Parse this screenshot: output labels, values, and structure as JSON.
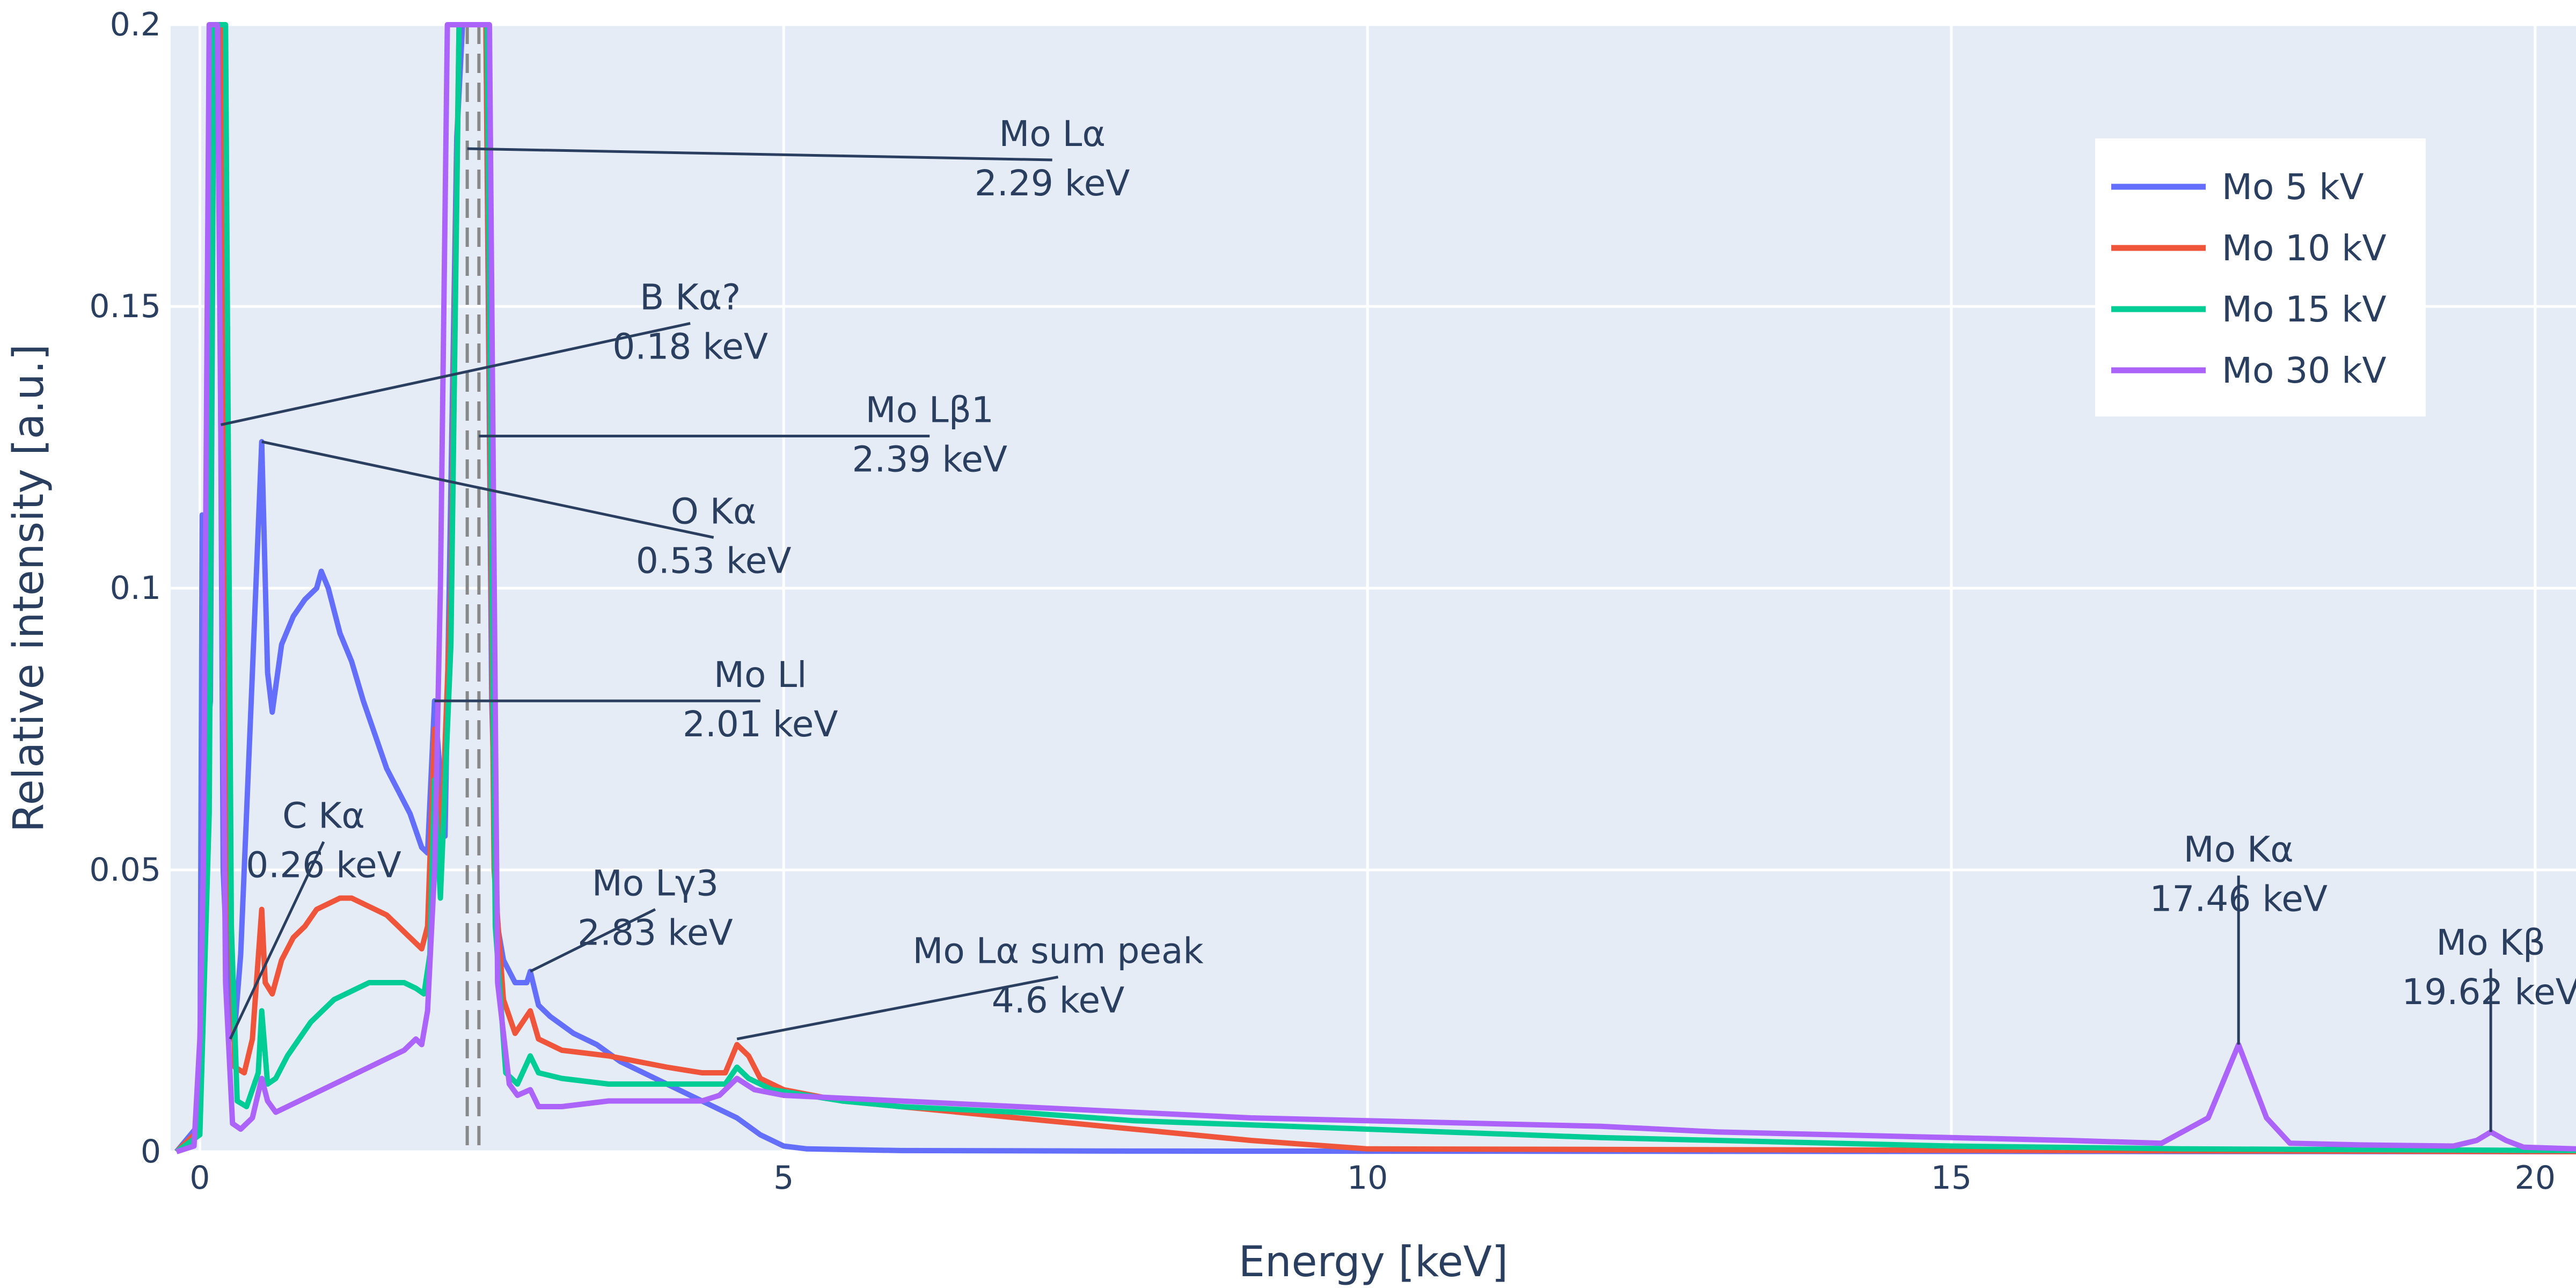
{
  "chart_data": {
    "type": "line",
    "title": "",
    "xlabel": "Energy [keV]",
    "ylabel": "Relative intensity [a.u.]",
    "xlim": [
      -0.25,
      20.35
    ],
    "ylim": [
      0,
      0.2
    ],
    "x_ticks": [
      {
        "v": 0,
        "label": "0"
      },
      {
        "v": 5,
        "label": "5"
      },
      {
        "v": 10,
        "label": "10"
      },
      {
        "v": 15,
        "label": "15"
      },
      {
        "v": 20,
        "label": "20"
      }
    ],
    "y_ticks": [
      {
        "v": 0,
        "label": "0"
      },
      {
        "v": 0.05,
        "label": "0.05"
      },
      {
        "v": 0.1,
        "label": "0.1"
      },
      {
        "v": 0.15,
        "label": "0.15"
      },
      {
        "v": 0.2,
        "label": "0.2"
      }
    ],
    "grid": true,
    "legend_position": "top-right",
    "reference_lines": [
      2.29,
      2.39
    ],
    "series": [
      {
        "name": "Mo 5 kV",
        "color": "#636efa",
        "points": [
          [
            -0.2,
            0.0
          ],
          [
            0.0,
            0.005
          ],
          [
            0.02,
            0.113
          ],
          [
            0.05,
            0.07
          ],
          [
            0.09,
            0.08
          ],
          [
            0.12,
            0.2
          ],
          [
            0.16,
            0.2
          ],
          [
            0.2,
            0.05
          ],
          [
            0.26,
            0.02
          ],
          [
            0.3,
            0.022
          ],
          [
            0.35,
            0.035
          ],
          [
            0.45,
            0.085
          ],
          [
            0.53,
            0.126
          ],
          [
            0.58,
            0.085
          ],
          [
            0.62,
            0.078
          ],
          [
            0.7,
            0.09
          ],
          [
            0.8,
            0.095
          ],
          [
            0.9,
            0.098
          ],
          [
            1.0,
            0.1
          ],
          [
            1.04,
            0.103
          ],
          [
            1.1,
            0.1
          ],
          [
            1.2,
            0.092
          ],
          [
            1.3,
            0.087
          ],
          [
            1.4,
            0.08
          ],
          [
            1.5,
            0.074
          ],
          [
            1.6,
            0.068
          ],
          [
            1.7,
            0.064
          ],
          [
            1.8,
            0.06
          ],
          [
            1.9,
            0.054
          ],
          [
            1.95,
            0.053
          ],
          [
            2.01,
            0.08
          ],
          [
            2.1,
            0.056
          ],
          [
            2.2,
            0.18
          ],
          [
            2.25,
            0.2
          ],
          [
            2.45,
            0.2
          ],
          [
            2.5,
            0.08
          ],
          [
            2.55,
            0.04
          ],
          [
            2.6,
            0.034
          ],
          [
            2.7,
            0.03
          ],
          [
            2.8,
            0.03
          ],
          [
            2.83,
            0.032
          ],
          [
            2.9,
            0.026
          ],
          [
            3.0,
            0.024
          ],
          [
            3.2,
            0.021
          ],
          [
            3.4,
            0.019
          ],
          [
            3.6,
            0.016
          ],
          [
            3.8,
            0.014
          ],
          [
            4.0,
            0.012
          ],
          [
            4.2,
            0.01
          ],
          [
            4.4,
            0.008
          ],
          [
            4.6,
            0.006
          ],
          [
            4.8,
            0.003
          ],
          [
            5.0,
            0.001
          ],
          [
            5.2,
            0.0005
          ],
          [
            6.0,
            0.0002
          ],
          [
            8.0,
            0.0001
          ],
          [
            20.35,
            0.0
          ]
        ]
      },
      {
        "name": "Mo 10 kV",
        "color": "#ef553b",
        "points": [
          [
            -0.2,
            0.0
          ],
          [
            0.0,
            0.004
          ],
          [
            0.05,
            0.06
          ],
          [
            0.1,
            0.2
          ],
          [
            0.2,
            0.2
          ],
          [
            0.25,
            0.05
          ],
          [
            0.3,
            0.015
          ],
          [
            0.38,
            0.014
          ],
          [
            0.45,
            0.02
          ],
          [
            0.53,
            0.043
          ],
          [
            0.56,
            0.03
          ],
          [
            0.62,
            0.028
          ],
          [
            0.7,
            0.034
          ],
          [
            0.8,
            0.038
          ],
          [
            0.9,
            0.04
          ],
          [
            1.0,
            0.043
          ],
          [
            1.1,
            0.044
          ],
          [
            1.2,
            0.045
          ],
          [
            1.3,
            0.045
          ],
          [
            1.4,
            0.044
          ],
          [
            1.5,
            0.043
          ],
          [
            1.6,
            0.042
          ],
          [
            1.7,
            0.04
          ],
          [
            1.8,
            0.038
          ],
          [
            1.9,
            0.036
          ],
          [
            1.95,
            0.04
          ],
          [
            2.01,
            0.075
          ],
          [
            2.06,
            0.05
          ],
          [
            2.15,
            0.1
          ],
          [
            2.22,
            0.2
          ],
          [
            2.45,
            0.2
          ],
          [
            2.52,
            0.05
          ],
          [
            2.6,
            0.027
          ],
          [
            2.7,
            0.021
          ],
          [
            2.83,
            0.025
          ],
          [
            2.9,
            0.02
          ],
          [
            3.1,
            0.018
          ],
          [
            3.5,
            0.017
          ],
          [
            4.0,
            0.015
          ],
          [
            4.3,
            0.014
          ],
          [
            4.5,
            0.014
          ],
          [
            4.6,
            0.019
          ],
          [
            4.7,
            0.017
          ],
          [
            4.8,
            0.013
          ],
          [
            5.0,
            0.011
          ],
          [
            5.5,
            0.009
          ],
          [
            6.0,
            0.008
          ],
          [
            7.0,
            0.006
          ],
          [
            8.0,
            0.004
          ],
          [
            9.0,
            0.002
          ],
          [
            10.0,
            0.0005
          ],
          [
            20.35,
            0.0
          ]
        ]
      },
      {
        "name": "Mo 15 kV",
        "color": "#00cc96",
        "points": [
          [
            -0.2,
            0.0
          ],
          [
            0.0,
            0.003
          ],
          [
            0.08,
            0.06
          ],
          [
            0.12,
            0.2
          ],
          [
            0.22,
            0.2
          ],
          [
            0.27,
            0.04
          ],
          [
            0.32,
            0.009
          ],
          [
            0.4,
            0.008
          ],
          [
            0.5,
            0.014
          ],
          [
            0.53,
            0.025
          ],
          [
            0.58,
            0.012
          ],
          [
            0.65,
            0.013
          ],
          [
            0.75,
            0.017
          ],
          [
            0.85,
            0.02
          ],
          [
            0.95,
            0.023
          ],
          [
            1.05,
            0.025
          ],
          [
            1.15,
            0.027
          ],
          [
            1.25,
            0.028
          ],
          [
            1.35,
            0.029
          ],
          [
            1.45,
            0.03
          ],
          [
            1.55,
            0.03
          ],
          [
            1.65,
            0.03
          ],
          [
            1.75,
            0.03
          ],
          [
            1.85,
            0.029
          ],
          [
            1.92,
            0.028
          ],
          [
            1.97,
            0.035
          ],
          [
            2.01,
            0.066
          ],
          [
            2.06,
            0.045
          ],
          [
            2.15,
            0.09
          ],
          [
            2.22,
            0.2
          ],
          [
            2.46,
            0.2
          ],
          [
            2.53,
            0.04
          ],
          [
            2.62,
            0.014
          ],
          [
            2.72,
            0.012
          ],
          [
            2.83,
            0.017
          ],
          [
            2.9,
            0.014
          ],
          [
            3.1,
            0.013
          ],
          [
            3.5,
            0.012
          ],
          [
            4.0,
            0.012
          ],
          [
            4.3,
            0.012
          ],
          [
            4.5,
            0.012
          ],
          [
            4.6,
            0.015
          ],
          [
            4.7,
            0.013
          ],
          [
            4.9,
            0.011
          ],
          [
            5.5,
            0.009
          ],
          [
            6.0,
            0.008
          ],
          [
            7.0,
            0.007
          ],
          [
            8.0,
            0.0055
          ],
          [
            10.0,
            0.004
          ],
          [
            12.0,
            0.0025
          ],
          [
            14.0,
            0.0015
          ],
          [
            15.0,
            0.001
          ],
          [
            17.0,
            0.0005
          ],
          [
            20.35,
            0.0002
          ]
        ]
      },
      {
        "name": "Mo 30 kV",
        "color": "#ab63fa",
        "points": [
          [
            -0.2,
            0.0
          ],
          [
            -0.05,
            0.001
          ],
          [
            0.0,
            0.02
          ],
          [
            0.03,
            0.05
          ],
          [
            0.08,
            0.2
          ],
          [
            0.15,
            0.2
          ],
          [
            0.22,
            0.03
          ],
          [
            0.28,
            0.005
          ],
          [
            0.35,
            0.004
          ],
          [
            0.45,
            0.006
          ],
          [
            0.53,
            0.013
          ],
          [
            0.58,
            0.009
          ],
          [
            0.65,
            0.007
          ],
          [
            0.75,
            0.008
          ],
          [
            0.85,
            0.009
          ],
          [
            0.95,
            0.01
          ],
          [
            1.05,
            0.011
          ],
          [
            1.15,
            0.012
          ],
          [
            1.25,
            0.013
          ],
          [
            1.35,
            0.014
          ],
          [
            1.45,
            0.015
          ],
          [
            1.55,
            0.016
          ],
          [
            1.65,
            0.017
          ],
          [
            1.75,
            0.018
          ],
          [
            1.85,
            0.02
          ],
          [
            1.9,
            0.019
          ],
          [
            1.95,
            0.025
          ],
          [
            2.01,
            0.05
          ],
          [
            2.06,
            0.1
          ],
          [
            2.12,
            0.2
          ],
          [
            2.48,
            0.2
          ],
          [
            2.55,
            0.03
          ],
          [
            2.65,
            0.012
          ],
          [
            2.72,
            0.01
          ],
          [
            2.83,
            0.011
          ],
          [
            2.9,
            0.008
          ],
          [
            3.1,
            0.008
          ],
          [
            3.5,
            0.009
          ],
          [
            4.0,
            0.009
          ],
          [
            4.3,
            0.009
          ],
          [
            4.45,
            0.01
          ],
          [
            4.6,
            0.013
          ],
          [
            4.75,
            0.011
          ],
          [
            5.0,
            0.01
          ],
          [
            6.0,
            0.009
          ],
          [
            7.0,
            0.008
          ],
          [
            8.0,
            0.007
          ],
          [
            9.0,
            0.006
          ],
          [
            10.0,
            0.0055
          ],
          [
            11.0,
            0.005
          ],
          [
            12.0,
            0.0045
          ],
          [
            13.0,
            0.0035
          ],
          [
            14.0,
            0.003
          ],
          [
            15.0,
            0.0025
          ],
          [
            16.0,
            0.002
          ],
          [
            16.8,
            0.0015
          ],
          [
            17.2,
            0.006
          ],
          [
            17.46,
            0.019
          ],
          [
            17.7,
            0.006
          ],
          [
            17.9,
            0.0015
          ],
          [
            18.5,
            0.0012
          ],
          [
            19.3,
            0.001
          ],
          [
            19.5,
            0.002
          ],
          [
            19.62,
            0.0035
          ],
          [
            19.75,
            0.002
          ],
          [
            19.9,
            0.0008
          ],
          [
            20.35,
            0.0005
          ]
        ]
      }
    ],
    "annotations": [
      {
        "lines": [
          "Mo Lα",
          "2.29 keV"
        ],
        "point": [
          2.29,
          0.178
        ],
        "text_at": [
          7.3,
          0.176
        ]
      },
      {
        "lines": [
          "B Kα?",
          "0.18 keV"
        ],
        "point": [
          0.18,
          0.129
        ],
        "text_at": [
          4.2,
          0.147
        ]
      },
      {
        "lines": [
          "Mo Lβ1",
          "2.39 keV"
        ],
        "point": [
          2.39,
          0.127
        ],
        "text_at": [
          6.25,
          0.127
        ]
      },
      {
        "lines": [
          "O Kα",
          "0.53 keV"
        ],
        "point": [
          0.53,
          0.126
        ],
        "text_at": [
          4.4,
          0.109
        ]
      },
      {
        "lines": [
          "Mo Ll",
          "2.01 keV"
        ],
        "point": [
          2.01,
          0.08
        ],
        "text_at": [
          4.8,
          0.08
        ]
      },
      {
        "lines": [
          "C Kα",
          "0.26 keV"
        ],
        "point": [
          0.26,
          0.02
        ],
        "text_at": [
          1.06,
          0.055
        ]
      },
      {
        "lines": [
          "Mo Lγ3",
          "2.83 keV"
        ],
        "point": [
          2.83,
          0.032
        ],
        "text_at": [
          3.9,
          0.043
        ]
      },
      {
        "lines": [
          "Mo Lα sum peak",
          "4.6 keV"
        ],
        "point": [
          4.6,
          0.02
        ],
        "text_at": [
          7.35,
          0.031
        ]
      },
      {
        "lines": [
          "Mo Kα",
          "17.46 keV"
        ],
        "point": [
          17.46,
          0.019
        ],
        "text_at": [
          17.46,
          0.049
        ]
      },
      {
        "lines": [
          "Mo Kβ",
          "19.62 keV"
        ],
        "point": [
          19.62,
          0.0035
        ],
        "text_at": [
          19.62,
          0.0325
        ]
      }
    ]
  }
}
